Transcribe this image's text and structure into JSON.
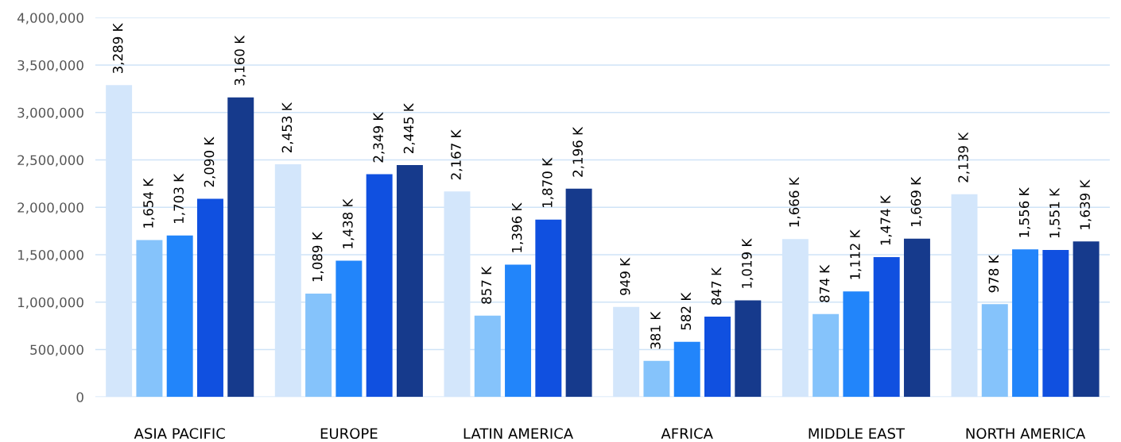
{
  "chart_data": {
    "type": "bar",
    "categories": [
      "ASIA PACIFIC",
      "EUROPE",
      "LATIN AMERICA",
      "AFRICA",
      "MIDDLE EAST",
      "NORTH AMERICA"
    ],
    "series": [
      {
        "color": "#d3e6fb",
        "values": [
          3289000,
          2453000,
          2167000,
          949000,
          1666000,
          2139000
        ],
        "value_labels": [
          "3,289 K",
          "2,453 K",
          "2,167 K",
          "949 K",
          "1,666 K",
          "2,139 K"
        ]
      },
      {
        "color": "#85c3fb",
        "values": [
          1654000,
          1089000,
          857000,
          381000,
          874000,
          978000
        ],
        "value_labels": [
          "1,654 K",
          "1,089 K",
          "857 K",
          "381 K",
          "874 K",
          "978 K"
        ]
      },
      {
        "color": "#2285fa",
        "values": [
          1703000,
          1438000,
          1396000,
          582000,
          1112000,
          1556000
        ],
        "value_labels": [
          "1,703 K",
          "1,438 K",
          "1,396 K",
          "582 K",
          "1,112 K",
          "1,556 K"
        ]
      },
      {
        "color": "#1050e0",
        "values": [
          2090000,
          2349000,
          1870000,
          847000,
          1474000,
          1551000
        ],
        "value_labels": [
          "2,090 K",
          "2,349 K",
          "1,870 K",
          "847 K",
          "1,474 K",
          "1,551 K"
        ]
      },
      {
        "color": "#163a8c",
        "values": [
          3160000,
          2445000,
          2196000,
          1019000,
          1669000,
          1639000
        ],
        "value_labels": [
          "3,160 K",
          "2,445 K",
          "2,196 K",
          "1,019 K",
          "1,669 K",
          "1,639 K"
        ]
      }
    ],
    "ylim": [
      0,
      4000000
    ],
    "yticks": [
      {
        "value": 0,
        "label": "0"
      },
      {
        "value": 500000,
        "label": "500,000"
      },
      {
        "value": 1000000,
        "label": "1,000,000"
      },
      {
        "value": 1500000,
        "label": "1,500,000"
      },
      {
        "value": 2000000,
        "label": "2,000,000"
      },
      {
        "value": 2500000,
        "label": "2,500,000"
      },
      {
        "value": 3000000,
        "label": "3,000,000"
      },
      {
        "value": 3500000,
        "label": "3,500,000"
      },
      {
        "value": 4000000,
        "label": "4,000,000"
      }
    ],
    "grid": "y"
  }
}
